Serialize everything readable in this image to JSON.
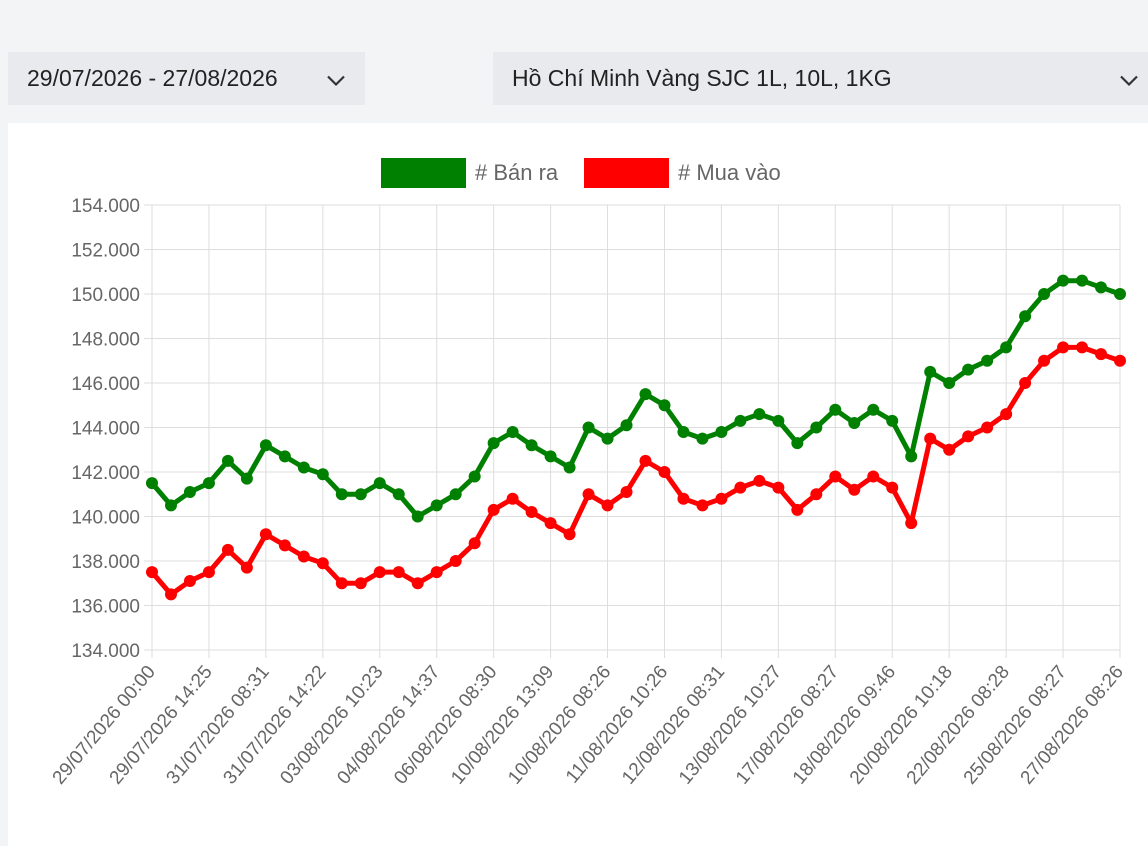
{
  "filters": {
    "date_range": "29/07/2026 - 27/08/2026",
    "product": "Hồ Chí Minh Vàng SJC 1L, 10L, 1KG"
  },
  "icons": {
    "dropdown": "chevron-down-icon"
  },
  "colors": {
    "sell": "#008000",
    "buy": "#ff0000"
  },
  "chart_data": {
    "type": "line",
    "legend_position": "top-center",
    "grid": true,
    "ylim": [
      134000,
      154000
    ],
    "y_ticks": [
      "154.000",
      "152.000",
      "150.000",
      "148.000",
      "146.000",
      "144.000",
      "142.000",
      "140.000",
      "138.000",
      "136.000",
      "134.000"
    ],
    "x_tick_labels": [
      "29/07/2026 00:00",
      "29/07/2026 14:25",
      "31/07/2026 08:31",
      "31/07/2026 14:22",
      "03/08/2026 10:23",
      "04/08/2026 14:37",
      "06/08/2026 08:30",
      "10/08/2026 13:09",
      "10/08/2026 08:26",
      "11/08/2026 10:26",
      "12/08/2026 08:31",
      "13/08/2026 10:27",
      "17/08/2026 08:27",
      "18/08/2026 09:46",
      "20/08/2026 10:18",
      "22/08/2026 08:28",
      "25/08/2026 08:27",
      "27/08/2026 08:26"
    ],
    "series": [
      {
        "name": "# Bán ra",
        "color": "#008000",
        "values": [
          141500,
          140500,
          141100,
          141500,
          142500,
          141700,
          143200,
          142700,
          142200,
          141900,
          141000,
          141000,
          141500,
          141000,
          140000,
          140500,
          141000,
          141800,
          143300,
          143800,
          143200,
          142700,
          142200,
          144000,
          143500,
          144100,
          145500,
          145000,
          143800,
          143500,
          143800,
          144300,
          144600,
          144300,
          143300,
          144000,
          144800,
          144200,
          144800,
          144300,
          142700,
          146500,
          146000,
          146600,
          147000,
          147600,
          149000,
          150000,
          150600,
          150600,
          150300,
          150000
        ]
      },
      {
        "name": "# Mua vào",
        "color": "#ff0000",
        "values": [
          137500,
          136500,
          137100,
          137500,
          138500,
          137700,
          139200,
          138700,
          138200,
          137900,
          137000,
          137000,
          137500,
          137500,
          137000,
          137500,
          138000,
          138800,
          140300,
          140800,
          140200,
          139700,
          139200,
          141000,
          140500,
          141100,
          142500,
          142000,
          140800,
          140500,
          140800,
          141300,
          141600,
          141300,
          140300,
          141000,
          141800,
          141200,
          141800,
          141300,
          139700,
          143500,
          143000,
          143600,
          144000,
          144600,
          146000,
          147000,
          147600,
          147600,
          147300,
          147000
        ]
      }
    ]
  }
}
